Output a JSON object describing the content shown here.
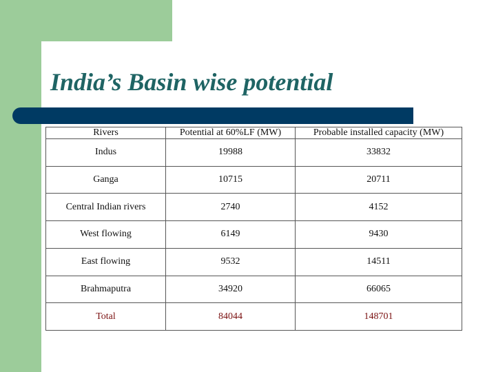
{
  "slide": {
    "title": "India’s Basin wise potential"
  },
  "colors": {
    "accent_green": "#9ccc9a",
    "title_text": "#1f6464",
    "title_bar": "#003a63",
    "total_text": "#7a1010"
  },
  "table": {
    "headers": [
      "Rivers",
      "Potential at 60%LF (MW)",
      "Probable installed capacity   (MW)"
    ],
    "rows": [
      [
        "Indus",
        "19988",
        "33832"
      ],
      [
        "Ganga",
        "10715",
        "20711"
      ],
      [
        "Central Indian rivers",
        "2740",
        "4152"
      ],
      [
        "West flowing",
        "6149",
        "9430"
      ],
      [
        "East flowing",
        "9532",
        "14511"
      ],
      [
        "Brahmaputra",
        "34920",
        "66065"
      ]
    ],
    "total": [
      "Total",
      "84044",
      "148701"
    ]
  }
}
